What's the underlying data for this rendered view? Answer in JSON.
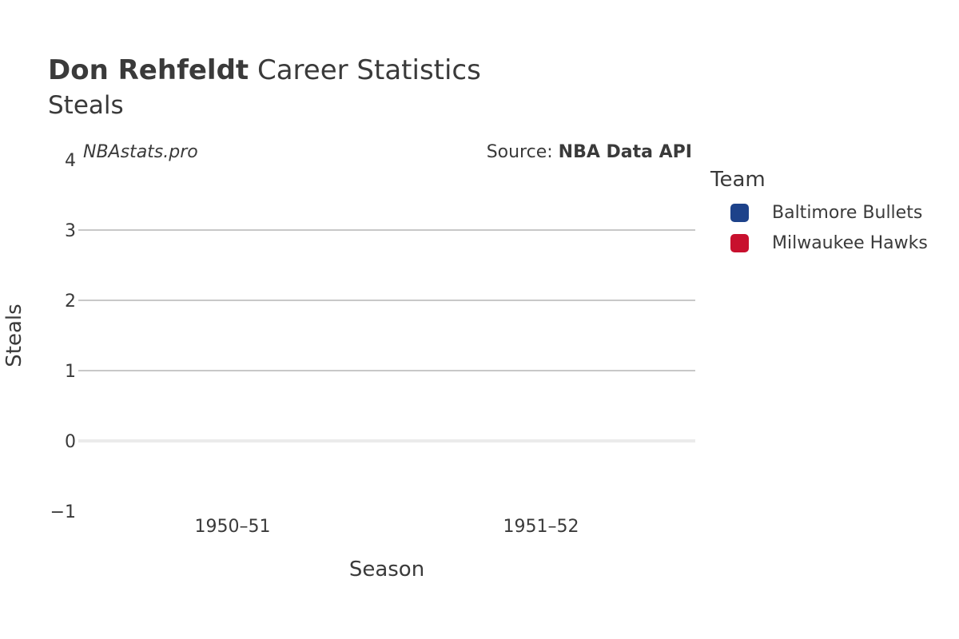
{
  "header": {
    "player_name": "Don Rehfeldt",
    "title_rest": "Career Statistics",
    "subtitle": "Steals"
  },
  "annotations": {
    "watermark": "NBAstats.pro",
    "source_prefix": "Source: ",
    "source_name": "NBA Data API"
  },
  "legend": {
    "title": "Team",
    "items": [
      {
        "label": "Baltimore Bullets",
        "color": "#1d428a"
      },
      {
        "label": "Milwaukee Hawks",
        "color": "#c8102e"
      }
    ]
  },
  "chart_data": {
    "type": "bar",
    "title": "Don Rehfeldt Career Statistics",
    "subtitle": "Steals",
    "xlabel": "Season",
    "ylabel": "Steals",
    "categories": [
      "1950–51",
      "1951–52"
    ],
    "series": [
      {
        "name": "Baltimore Bullets",
        "color": "#1d428a",
        "values": [
          null,
          null
        ]
      },
      {
        "name": "Milwaukee Hawks",
        "color": "#c8102e",
        "values": [
          null,
          null
        ]
      }
    ],
    "ylim": [
      -1,
      4
    ],
    "yticks": [
      -1,
      0,
      1,
      2,
      3,
      4
    ],
    "ytick_labels": [
      "−1",
      "0",
      "1",
      "2",
      "3",
      "4"
    ],
    "grid": true,
    "legend_position": "right"
  }
}
